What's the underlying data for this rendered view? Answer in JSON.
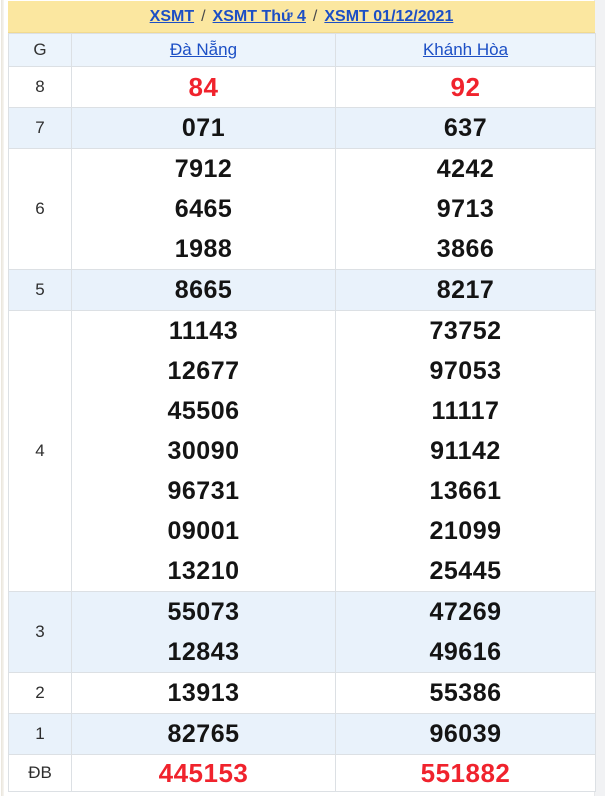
{
  "page": {
    "breadcrumb": {
      "separator": "/",
      "items": [
        {
          "label": "XSMT"
        },
        {
          "label": "XSMT Thứ 4"
        },
        {
          "label": "XSMT 01/12/2021"
        }
      ]
    },
    "results_table": {
      "prize_column_header": "G",
      "province_headers": [
        "Đà Nẵng",
        "Khánh Hòa"
      ],
      "rows": [
        {
          "prize": "8",
          "highlight": true,
          "shaded": false,
          "values": [
            [
              "84"
            ],
            [
              "92"
            ]
          ]
        },
        {
          "prize": "7",
          "highlight": false,
          "shaded": true,
          "values": [
            [
              "071"
            ],
            [
              "637"
            ]
          ]
        },
        {
          "prize": "6",
          "highlight": false,
          "shaded": false,
          "values": [
            [
              "7912",
              "6465",
              "1988"
            ],
            [
              "4242",
              "9713",
              "3866"
            ]
          ]
        },
        {
          "prize": "5",
          "highlight": false,
          "shaded": true,
          "values": [
            [
              "8665"
            ],
            [
              "8217"
            ]
          ]
        },
        {
          "prize": "4",
          "highlight": false,
          "shaded": false,
          "values": [
            [
              "11143",
              "12677",
              "45506",
              "30090",
              "96731",
              "09001",
              "13210"
            ],
            [
              "73752",
              "97053",
              "11117",
              "91142",
              "13661",
              "21099",
              "25445"
            ]
          ]
        },
        {
          "prize": "3",
          "highlight": false,
          "shaded": true,
          "values": [
            [
              "55073",
              "12843"
            ],
            [
              "47269",
              "49616"
            ]
          ]
        },
        {
          "prize": "2",
          "highlight": false,
          "shaded": false,
          "values": [
            [
              "13913"
            ],
            [
              "55386"
            ]
          ]
        },
        {
          "prize": "1",
          "highlight": false,
          "shaded": true,
          "values": [
            [
              "82765"
            ],
            [
              "96039"
            ]
          ]
        },
        {
          "prize": "ĐB",
          "highlight": true,
          "shaded": false,
          "values": [
            [
              "445153"
            ],
            [
              "551882"
            ]
          ]
        }
      ]
    },
    "colors": {
      "header_bg": "#fbe7a0",
      "link_blue": "#1c4fc5",
      "highlight_red": "#f0232d",
      "shaded_row_bg": "#e9f2fb",
      "border": "#dce0e4"
    }
  }
}
